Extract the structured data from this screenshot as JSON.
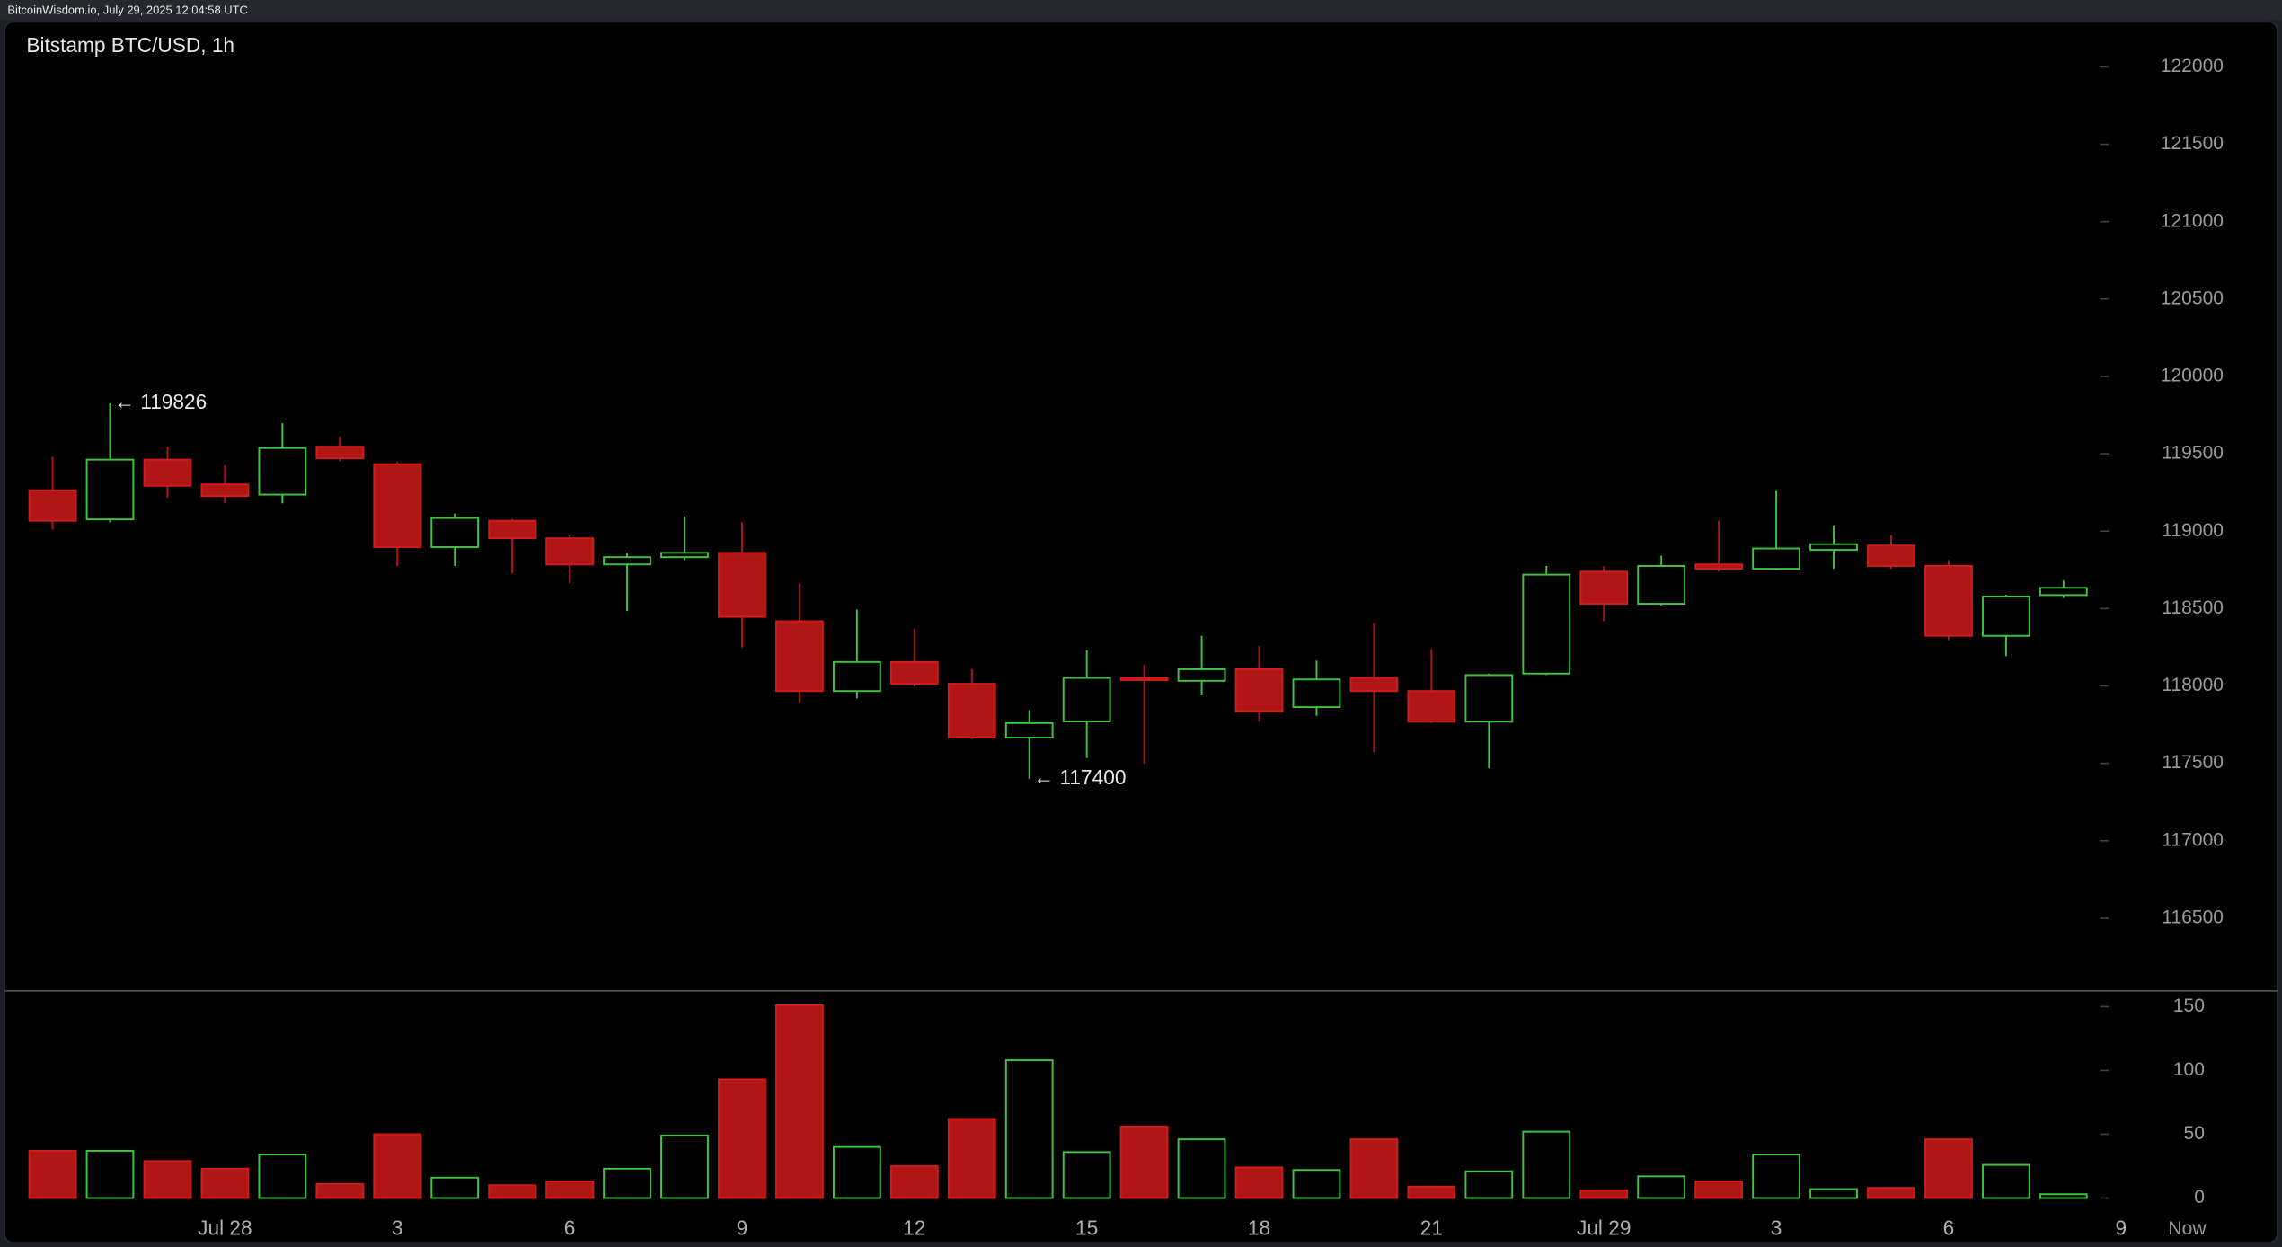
{
  "header": "BitcoinWisdom.io, July 29, 2025 12:04:58 UTC",
  "chart_data": {
    "type": "candlestick",
    "title": "Bitstamp BTC/USD, 1h",
    "categories": [
      null,
      null,
      null,
      "Jul 28",
      null,
      null,
      "3",
      null,
      null,
      "6",
      null,
      null,
      "9",
      null,
      null,
      "12",
      null,
      null,
      "15",
      null,
      null,
      "18",
      null,
      null,
      "21",
      null,
      null,
      "Jul 29",
      null,
      null,
      "3",
      null,
      null,
      "6",
      null,
      null,
      "9"
    ],
    "x_end_label": "Now",
    "open": [
      119264,
      119076,
      119462,
      119302,
      119236,
      119546,
      119433,
      118897,
      119067,
      118954,
      118785,
      118832,
      118860,
      118418,
      117967,
      118155,
      118014,
      117666,
      117770,
      118052,
      118033,
      118108,
      117863,
      118052,
      117967,
      117769,
      118080,
      118738,
      118531,
      118785,
      118757,
      118879,
      118907,
      118775,
      118324,
      118587,
      null
    ],
    "high": [
      119480,
      119826,
      119546,
      119424,
      119697,
      119612,
      119450,
      119114,
      119080,
      118973,
      118860,
      119095,
      119057,
      118662,
      118493,
      118371,
      118108,
      117845,
      118230,
      118136,
      118324,
      118258,
      118164,
      118408,
      118239,
      118080,
      118775,
      118775,
      118841,
      119067,
      119264,
      119038,
      118973,
      118813,
      118590,
      118681,
      null
    ],
    "low": [
      119010,
      119057,
      119217,
      119180,
      119180,
      119452,
      118775,
      118775,
      118728,
      118662,
      118484,
      118813,
      118249,
      117892,
      117920,
      117995,
      117656,
      117400,
      117534,
      117497,
      117939,
      117769,
      117807,
      117572,
      117760,
      117468,
      118070,
      118418,
      118520,
      118738,
      118750,
      118757,
      118757,
      118296,
      118193,
      118568,
      null
    ],
    "close": [
      119067,
      119462,
      119293,
      119227,
      119537,
      119471,
      118897,
      119085,
      118954,
      118785,
      118832,
      118860,
      118446,
      117967,
      118155,
      118014,
      117666,
      117760,
      118052,
      118042,
      118108,
      117835,
      118042,
      117967,
      117769,
      118070,
      118719,
      118531,
      118775,
      118757,
      118888,
      118916,
      118775,
      118324,
      118578,
      118634,
      null
    ],
    "volume": [
      37,
      37,
      29,
      23,
      34,
      11,
      50,
      16,
      10,
      13,
      23,
      49,
      93,
      151,
      40,
      25,
      62,
      108,
      36,
      56,
      46,
      24,
      22,
      46,
      9,
      21,
      52,
      6,
      17,
      13,
      34,
      7,
      8,
      46,
      26,
      3,
      null
    ],
    "up_color": "#3fc43f",
    "down_color": "#b01616",
    "ylim": [
      116039,
      122291
    ],
    "yticks": [
      116500,
      117000,
      117500,
      118000,
      118500,
      119000,
      119500,
      120000,
      120500,
      121000,
      121500,
      122000
    ],
    "volume_ylim": [
      -11,
      160
    ],
    "volume_yticks": [
      0,
      50,
      100,
      150
    ],
    "annotations": {
      "high": "← 119826",
      "low": "← 117400"
    }
  }
}
